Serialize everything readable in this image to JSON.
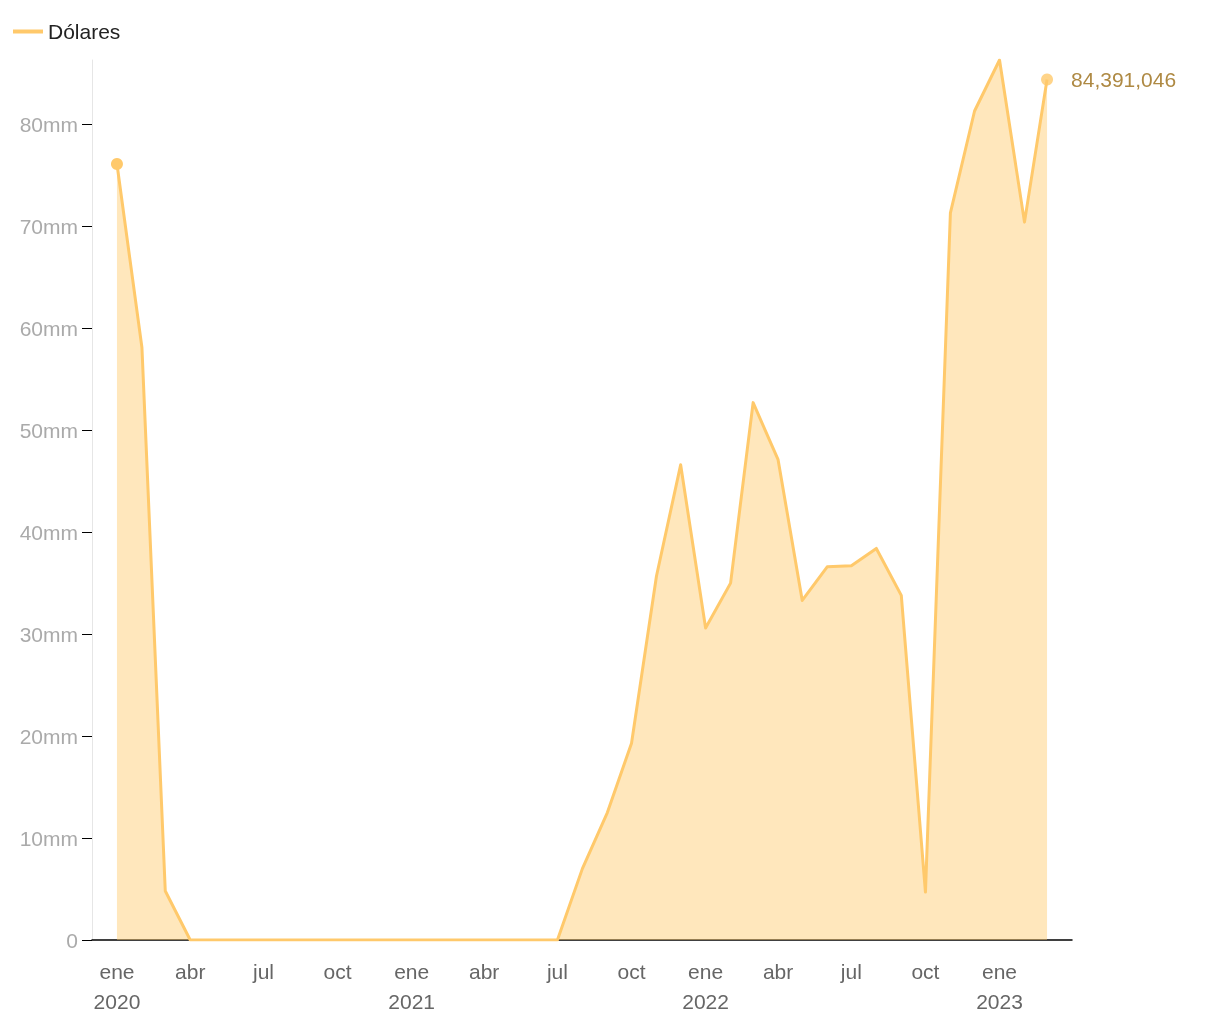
{
  "chart_data": {
    "type": "area",
    "x": [
      "2020-01",
      "2020-02",
      "2020-03",
      "2020-04",
      "2020-05",
      "2020-06",
      "2020-07",
      "2020-08",
      "2020-09",
      "2020-10",
      "2020-11",
      "2020-12",
      "2021-01",
      "2021-02",
      "2021-03",
      "2021-04",
      "2021-05",
      "2021-06",
      "2021-07",
      "2021-08",
      "2021-09",
      "2021-10",
      "2021-11",
      "2021-12",
      "2022-01",
      "2022-02",
      "2022-03",
      "2022-04",
      "2022-05",
      "2022-06",
      "2022-07",
      "2022-08",
      "2022-09",
      "2022-10",
      "2022-11",
      "2022-12",
      "2023-01",
      "2023-02",
      "2023-03"
    ],
    "series": [
      {
        "name": "Dólares",
        "color": "#ffc96b",
        "values": [
          76.1,
          58.1,
          4.8,
          0,
          0,
          0,
          0,
          0,
          0,
          0,
          0,
          0,
          0,
          0,
          0,
          0,
          0,
          0,
          0,
          7.0,
          12.5,
          19.3,
          35.7,
          46.6,
          30.6,
          35.0,
          52.7,
          47.1,
          33.3,
          36.6,
          36.7,
          38.4,
          33.8,
          4.7,
          71.3,
          81.3,
          86.3,
          70.4,
          84.391046
        ]
      }
    ],
    "annotations": [
      {
        "text": "84,391,046",
        "x": "2023-03",
        "y": 84.391046
      }
    ],
    "xlim": [
      "2019-12",
      "2023-04"
    ],
    "ylim": [
      0,
      86.3
    ],
    "xticks": [
      {
        "value": "2020-01",
        "label": "ene\n2020"
      },
      {
        "value": "2020-04",
        "label": "abr"
      },
      {
        "value": "2020-07",
        "label": "jul"
      },
      {
        "value": "2020-10",
        "label": "oct"
      },
      {
        "value": "2021-01",
        "label": "ene\n2021"
      },
      {
        "value": "2021-04",
        "label": "abr"
      },
      {
        "value": "2021-07",
        "label": "jul"
      },
      {
        "value": "2021-10",
        "label": "oct"
      },
      {
        "value": "2022-01",
        "label": "ene\n2022"
      },
      {
        "value": "2022-04",
        "label": "abr"
      },
      {
        "value": "2022-07",
        "label": "jul"
      },
      {
        "value": "2022-10",
        "label": "oct"
      },
      {
        "value": "2023-01",
        "label": "ene\n2023"
      }
    ],
    "yticks": [
      0,
      {
        "value": 10,
        "label": "10mm"
      },
      {
        "value": 20,
        "label": "20mm"
      },
      {
        "value": 30,
        "label": "30mm"
      },
      {
        "value": 40,
        "label": "40mm"
      },
      {
        "value": 50,
        "label": "50mm"
      },
      {
        "value": 60,
        "label": "60mm"
      },
      {
        "value": 70,
        "label": "70mm"
      },
      {
        "value": 80,
        "label": "80mm"
      }
    ],
    "legend": "top left",
    "grid": false
  }
}
